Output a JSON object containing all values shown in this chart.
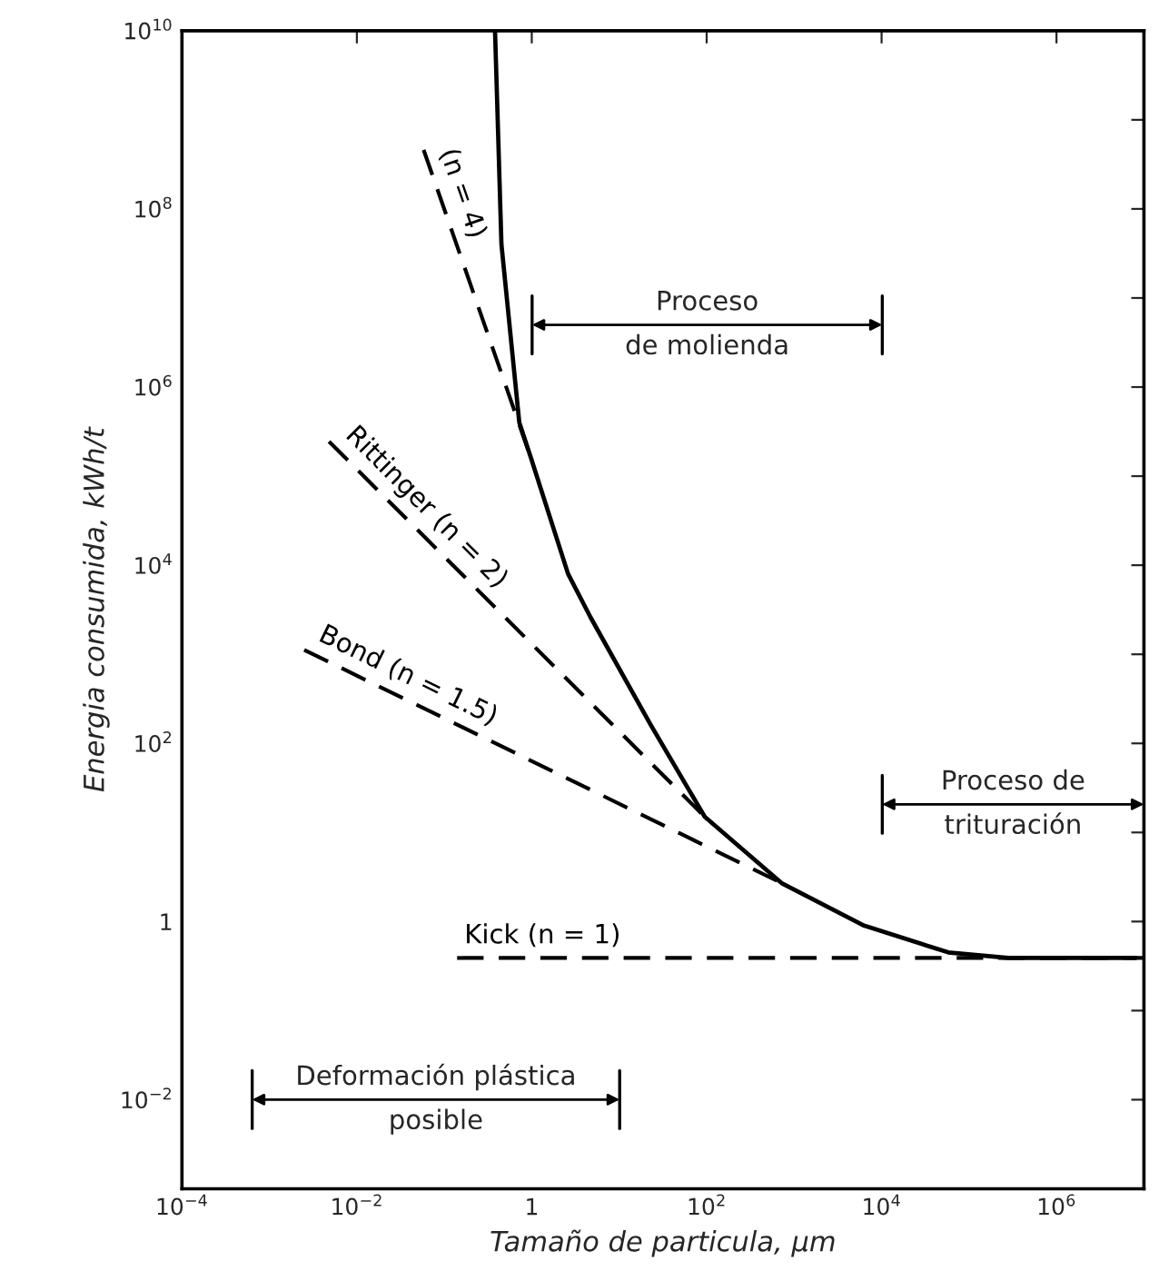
{
  "chart_data": {
    "type": "line",
    "xlabel": "Tamaño de particula, μm",
    "ylabel": "Energia consumida, kWh/t",
    "log": "xy",
    "xlim": [
      0.0001,
      10000000
    ],
    "ylim": [
      0.001,
      10000000000
    ],
    "xticks": [
      {
        "value": 0.0001,
        "label": "10$^{−4}$"
      },
      {
        "value": 0.01,
        "label": "10$^{−2}$"
      },
      1,
      {
        "value": 100,
        "label": "10$^{2}$"
      },
      {
        "value": 10000,
        "label": "10$^{4}$"
      },
      {
        "value": 1000000,
        "label": "10$^{6}$"
      }
    ],
    "yticks": [
      {
        "value": 0.001,
        "label": null
      },
      {
        "value": 0.01,
        "label": "10$^{−2}$"
      },
      {
        "value": 0.1,
        "label": null
      },
      1,
      {
        "value": 10,
        "label": null
      },
      {
        "value": 100,
        "label": "10$^{2}$"
      },
      {
        "value": 1000,
        "label": null
      },
      {
        "value": 10000,
        "label": "10$^{4}$"
      },
      {
        "value": 100000,
        "label": null
      },
      {
        "value": 1000000,
        "label": "10$^{6}$"
      },
      {
        "value": 10000000,
        "label": null
      },
      {
        "value": 100000000,
        "label": "10$^{8}$"
      },
      {
        "value": 1000000000,
        "label": null
      },
      {
        "value": 10000000000,
        "label": "10$^{10}$"
      }
    ],
    "grid": false,
    "series": [
      {
        "color": "#000000",
        "line_style": "solid",
        "x": [
          0.38,
          0.45,
          0.72,
          1.0,
          2.6,
          4.7,
          23,
          95,
          720,
          6300,
          58000,
          280000,
          8000000
        ],
        "values": [
          10000000000,
          40000000,
          400000,
          150000,
          8000,
          2600,
          160,
          15,
          2.7,
          0.9,
          0.45,
          0.39,
          0.39
        ]
      },
      {
        "name": "(n = 4)",
        "color": "#000000",
        "line_style": "dashed",
        "x": [
          0.058,
          1.0
        ],
        "values": [
          460000000,
          150000
        ]
      },
      {
        "name": "Rittinger (n = 2)",
        "color": "#000000",
        "line_style": "dashed",
        "x": [
          0.0048,
          95
        ],
        "values": [
          245000,
          15
        ]
      },
      {
        "name": "Bond (n = 1.5)",
        "color": "#000000",
        "line_style": "dashed",
        "x": [
          0.0025,
          720
        ],
        "values": [
          1120,
          2.7
        ]
      },
      {
        "name": "Kick (n = 1)",
        "color": "#000000",
        "line_style": "dashed",
        "x": [
          0.14,
          10000000
        ],
        "values": [
          0.39,
          0.39
        ]
      }
    ],
    "annotations": [
      "Proceso\nde molienda",
      "Proceso de\ntrituración",
      "Deformación plástica\nposible"
    ]
  }
}
